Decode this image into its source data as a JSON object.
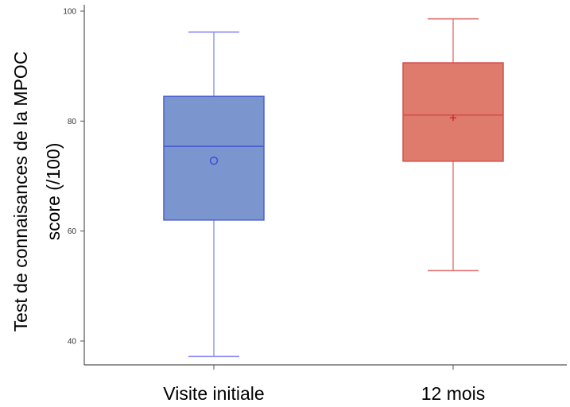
{
  "chart_data": {
    "type": "box",
    "title": "",
    "xlabel": "",
    "ylabel_line1": "Test de connaisances de la MPOC",
    "ylabel_line2": "score (/100)",
    "ylim": [
      37,
      100
    ],
    "yticks": [
      "40",
      "60",
      "80",
      "100"
    ],
    "grid": false,
    "legend": "none",
    "categories": [
      "Visite initiale",
      "12 mois"
    ],
    "series": [
      {
        "category": "Visite initiale",
        "min": 37.2,
        "q1": 62.0,
        "median": 75.4,
        "q3": 84.5,
        "max": 96.2,
        "mean": 72.8,
        "mean_marker": "o",
        "fill": "#7b96cf",
        "stroke": "#4a5fd0",
        "whisker": "#8f8ff5",
        "marker_color": "#3a4fd6"
      },
      {
        "category": "12 mois",
        "min": 52.8,
        "q1": 72.7,
        "median": 81.1,
        "q3": 90.6,
        "max": 98.6,
        "mean": 80.6,
        "mean_marker": "+",
        "fill": "#df7b6c",
        "stroke": "#d44f4f",
        "whisker": "#df7676",
        "marker_color": "#c23030"
      }
    ]
  }
}
